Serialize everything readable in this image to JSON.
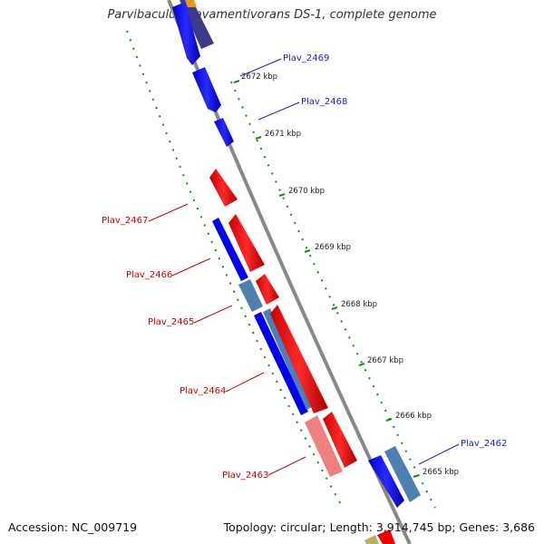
{
  "title": "Parvibaculum lavamentivorans DS-1, complete genome",
  "footer": {
    "accession": "Accession: NC_009719",
    "summary": "Topology: circular; Length: 3,914,745 bp; Genes: 3,686"
  },
  "colors": {
    "backbone": "#888888",
    "forward_cds": "#0000ee",
    "forward_other": "#4f7fb0",
    "reverse_cds": "#ee0000",
    "reverse_pale": "#f08080",
    "tick": "#1a8a1a",
    "label_forward": "#1f1fbf",
    "label_reverse": "#cc0000"
  },
  "scale_ticks": [
    "2672 kbp",
    "2671 kbp",
    "2670 kbp",
    "2669 kbp",
    "2668 kbp",
    "2667 kbp",
    "2666 kbp",
    "2665 kbp"
  ],
  "gene_labels": {
    "forward": [
      "Plav_2469",
      "Plav_2468",
      "Plav_2462"
    ],
    "reverse": [
      "Plav_2467",
      "Plav_2466",
      "Plav_2465",
      "Plav_2464",
      "Plav_2463"
    ]
  }
}
